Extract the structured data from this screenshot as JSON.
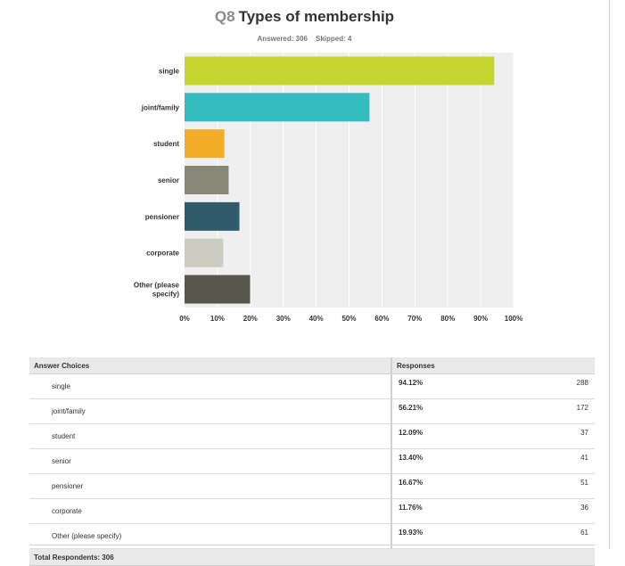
{
  "question": {
    "number": "Q8",
    "title": "Types of membership",
    "answered": "Answered: 306",
    "skipped": "Skipped: 4"
  },
  "chart_data": {
    "type": "bar",
    "orientation": "horizontal",
    "categories": [
      "single",
      "joint/family",
      "student",
      "senior",
      "pensioner",
      "corporate",
      "Other (please specify)"
    ],
    "category_lines": [
      [
        "single"
      ],
      [
        "joint/family"
      ],
      [
        "student"
      ],
      [
        "senior"
      ],
      [
        "pensioner"
      ],
      [
        "corporate"
      ],
      [
        "Other (please",
        "specify)"
      ]
    ],
    "values": [
      94.12,
      56.21,
      12.09,
      13.4,
      16.67,
      11.76,
      19.93
    ],
    "colors": [
      "#c6d42f",
      "#33bbbf",
      "#f2ae28",
      "#878878",
      "#305b6b",
      "#cccbbf",
      "#56574a"
    ],
    "xlim": [
      0,
      100
    ],
    "xticks": [
      0,
      10,
      20,
      30,
      40,
      50,
      60,
      70,
      80,
      90,
      100
    ],
    "xtick_labels": [
      "0%",
      "10%",
      "20%",
      "30%",
      "40%",
      "50%",
      "60%",
      "70%",
      "80%",
      "90%",
      "100%"
    ],
    "grid": true,
    "plot_background": "#efefef"
  },
  "table": {
    "headers": {
      "choice": "Answer Choices",
      "responses": "Responses"
    },
    "rows": [
      {
        "choice": "single",
        "percent": "94.12%",
        "count": "288"
      },
      {
        "choice": "joint/family",
        "percent": "56.21%",
        "count": "172"
      },
      {
        "choice": "student",
        "percent": "12.09%",
        "count": "37"
      },
      {
        "choice": "senior",
        "percent": "13.40%",
        "count": "41"
      },
      {
        "choice": "pensioner",
        "percent": "16.67%",
        "count": "51"
      },
      {
        "choice": "corporate",
        "percent": "11.76%",
        "count": "36"
      },
      {
        "choice": "Other (please specify)",
        "percent": "19.93%",
        "count": "61"
      }
    ],
    "total_label": "Total Respondents: 306"
  }
}
